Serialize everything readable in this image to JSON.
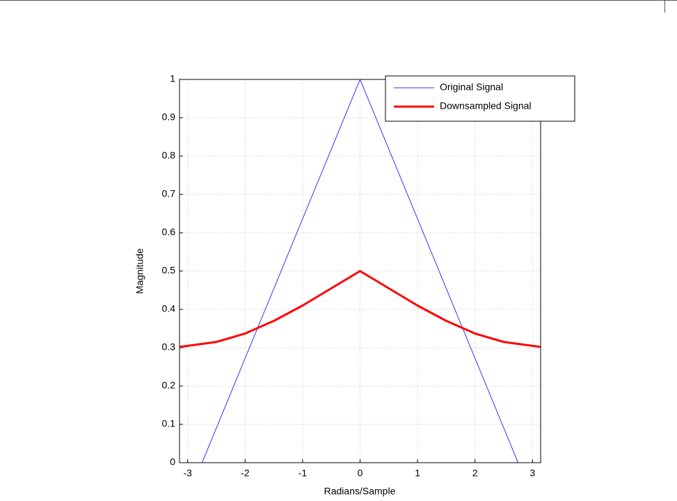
{
  "chart_data": {
    "type": "line",
    "xlabel": "Radians/Sample",
    "ylabel": "Magnitude",
    "xlim": [
      -3.1416,
      3.1416
    ],
    "ylim": [
      0,
      1
    ],
    "xticks": [
      -3,
      -2,
      -1,
      0,
      1,
      2,
      3
    ],
    "yticks": [
      0,
      0.1,
      0.2,
      0.3,
      0.4,
      0.5,
      0.6,
      0.7,
      0.8,
      0.9,
      1
    ],
    "grid": true,
    "legend": "northeast",
    "series": [
      {
        "name": "Original Signal",
        "color": "#3333ff",
        "linewidth": 1,
        "x": [
          -3.1416,
          -2.7489,
          0,
          2.7489,
          3.1416
        ],
        "values": [
          0,
          0,
          1,
          0,
          0
        ]
      },
      {
        "name": "Downsampled Signal",
        "color": "#ff0000",
        "linewidth": 3,
        "x": [
          -3.1416,
          -2.5,
          -2,
          -1.5,
          -1,
          -0.5,
          0,
          0.5,
          1,
          1.5,
          2,
          2.5,
          3.1416
        ],
        "values": [
          0.302,
          0.315,
          0.337,
          0.37,
          0.41,
          0.455,
          0.5,
          0.455,
          0.41,
          0.37,
          0.337,
          0.315,
          0.302
        ]
      }
    ]
  }
}
